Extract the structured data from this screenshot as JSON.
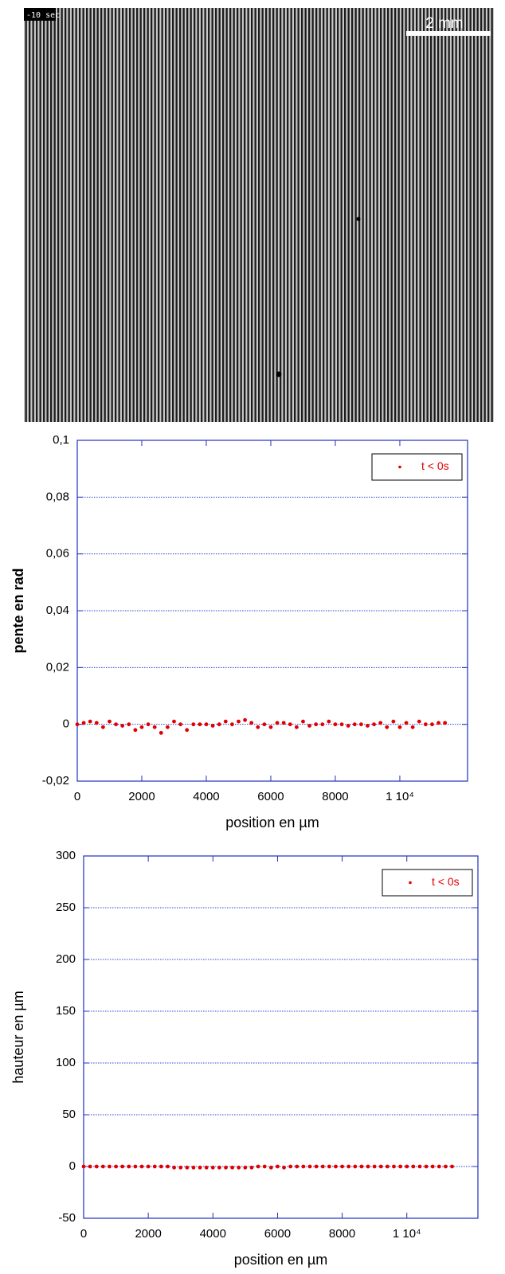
{
  "image": {
    "timestamp": "-10 sec",
    "scale_bar": "2 mm"
  },
  "chart_data": [
    {
      "type": "scatter",
      "x_label": "position en µm",
      "y_label": "pente en rad",
      "x": [
        0,
        200,
        400,
        600,
        800,
        1000,
        1200,
        1400,
        1600,
        1800,
        2000,
        2200,
        2400,
        2600,
        2800,
        3000,
        3200,
        3400,
        3600,
        3800,
        4000,
        4200,
        4400,
        4600,
        4800,
        5000,
        5200,
        5400,
        5600,
        5800,
        6000,
        6200,
        6400,
        6600,
        6800,
        7000,
        7200,
        7400,
        7600,
        7800,
        8000,
        8200,
        8400,
        8600,
        8800,
        9000,
        9200,
        9400,
        9600,
        9800,
        10000,
        10200,
        10400,
        10600,
        10800,
        11000,
        11200,
        11400
      ],
      "series": [
        {
          "name": "t < 0s",
          "color": "#e00000",
          "values": [
            0,
            0.0005,
            0.001,
            0.0005,
            -0.001,
            0.001,
            0,
            -0.0005,
            0,
            -0.002,
            -0.001,
            0,
            -0.001,
            -0.003,
            -0.001,
            0.001,
            0,
            -0.002,
            0,
            0,
            0,
            -0.0005,
            0,
            0.001,
            0,
            0.001,
            0.0015,
            0.0005,
            -0.001,
            0,
            -0.001,
            0.0005,
            0.0005,
            0,
            -0.001,
            0.001,
            -0.0005,
            0,
            0,
            0.001,
            0,
            0,
            -0.0005,
            0,
            0,
            -0.0005,
            0,
            0.0005,
            -0.001,
            0.001,
            -0.001,
            0.0005,
            -0.001,
            0.001,
            0,
            0,
            0.0005,
            0.0005
          ]
        }
      ],
      "xlim": [
        0,
        12100
      ],
      "ylim": [
        -0.02,
        0.1
      ],
      "xticks": [
        0,
        2000,
        4000,
        6000,
        8000,
        {
          "value": 10000,
          "label": "1 10⁴"
        }
      ],
      "yticks": [
        {
          "value": -0.02,
          "label": "-0,02"
        },
        0,
        {
          "value": 0.02,
          "label": "0,02"
        },
        {
          "value": 0.04,
          "label": "0,04"
        },
        {
          "value": 0.06,
          "label": "0,06"
        },
        {
          "value": 0.08,
          "label": "0,08"
        },
        {
          "value": 0.1,
          "label": "0,1"
        }
      ],
      "grid": true,
      "legend": "upper right"
    },
    {
      "type": "scatter",
      "x_label": "position en µm",
      "y_label": "hauteur en µm",
      "x": [
        0,
        200,
        400,
        600,
        800,
        1000,
        1200,
        1400,
        1600,
        1800,
        2000,
        2200,
        2400,
        2600,
        2800,
        3000,
        3200,
        3400,
        3600,
        3800,
        4000,
        4200,
        4400,
        4600,
        4800,
        5000,
        5200,
        5400,
        5600,
        5800,
        6000,
        6200,
        6400,
        6600,
        6800,
        7000,
        7200,
        7400,
        7600,
        7800,
        8000,
        8200,
        8400,
        8600,
        8800,
        9000,
        9200,
        9400,
        9600,
        9800,
        10000,
        10200,
        10400,
        10600,
        10800,
        11000,
        11200,
        11400
      ],
      "series": [
        {
          "name": "t < 0s",
          "color": "#e00000",
          "values": [
            0,
            0,
            0,
            0,
            0,
            0,
            0,
            0,
            0,
            0,
            0,
            0,
            0,
            0,
            -1,
            -1,
            -1,
            -1,
            -1,
            -1,
            -1,
            -1,
            -1,
            -1,
            -1,
            -1,
            -1,
            0,
            0,
            -1,
            0,
            -1,
            0,
            0,
            0,
            0,
            0,
            0,
            0,
            0,
            0,
            0,
            0,
            0,
            0,
            0,
            0,
            0,
            0,
            0,
            0,
            0,
            0,
            0,
            0,
            0,
            0,
            0
          ]
        }
      ],
      "xlim": [
        0,
        12200
      ],
      "ylim": [
        -50,
        300
      ],
      "xticks": [
        0,
        2000,
        4000,
        6000,
        8000,
        {
          "value": 10000,
          "label": "1 10⁴"
        }
      ],
      "yticks": [
        -50,
        0,
        50,
        100,
        150,
        200,
        250,
        300
      ],
      "grid": true,
      "legend": "upper right"
    }
  ]
}
